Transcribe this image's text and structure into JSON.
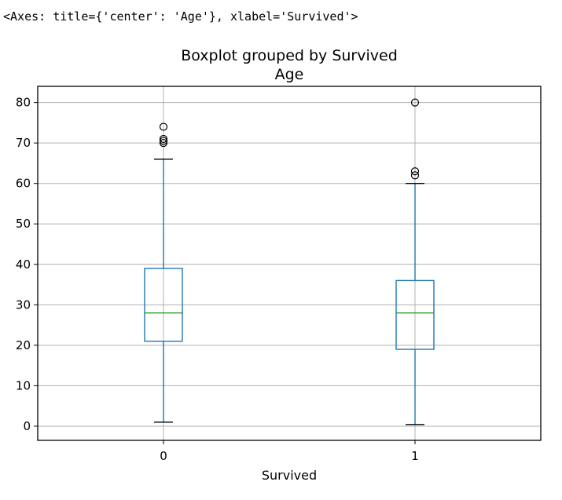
{
  "output": {
    "repr_text": "<Axes: title={'center': 'Age'}, xlabel='Survived'>"
  },
  "colors": {
    "box": "#1f77b4",
    "median": "#2ca02c",
    "grid": "#b0b0b0",
    "axes": "#000000"
  },
  "chart_data": {
    "type": "boxplot",
    "suptitle": "Boxplot grouped by Survived",
    "title": "Age",
    "xlabel": "Survived",
    "ylabel": "",
    "categories": [
      "0",
      "1"
    ],
    "ylim": [
      -3.5,
      84
    ],
    "yticks": [
      0,
      10,
      20,
      30,
      40,
      50,
      60,
      70,
      80
    ],
    "grid": true,
    "boxes": [
      {
        "category": "0",
        "whisker_low": 1,
        "q1": 21,
        "median": 28,
        "q3": 39,
        "whisker_high": 66,
        "fliers": [
          70,
          70.5,
          71,
          74
        ]
      },
      {
        "category": "1",
        "whisker_low": 0.42,
        "q1": 19,
        "median": 28,
        "q3": 36,
        "whisker_high": 60,
        "fliers": [
          62,
          63,
          80
        ]
      }
    ]
  }
}
